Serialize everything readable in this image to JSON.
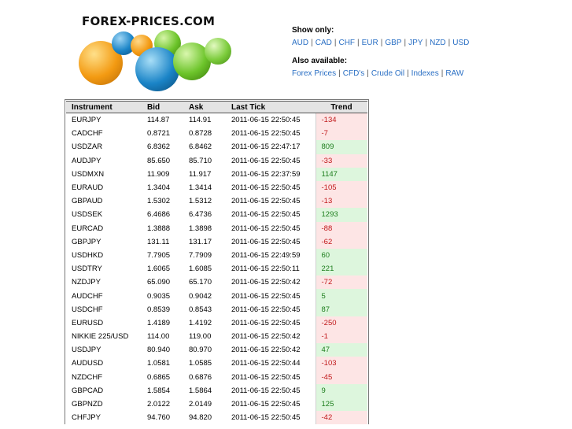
{
  "logo": {
    "text": "FOREX-PRICES.COM"
  },
  "filters": {
    "show_only_label": "Show only:",
    "currencies": [
      "AUD",
      "CAD",
      "CHF",
      "EUR",
      "GBP",
      "JPY",
      "NZD",
      "USD"
    ],
    "also_available_label": "Also available:",
    "also_links": [
      "Forex Prices",
      "CFD's",
      "Crude Oil",
      "Indexes",
      "RAW"
    ]
  },
  "table": {
    "headers": [
      "Instrument",
      "Bid",
      "Ask",
      "Last Tick",
      "Trend"
    ],
    "rows": [
      [
        "EURJPY",
        "114.87",
        "114.91",
        "2011-06-15 22:50:45",
        "-134"
      ],
      [
        "CADCHF",
        "0.8721",
        "0.8728",
        "2011-06-15 22:50:45",
        "-7"
      ],
      [
        "USDZAR",
        "6.8362",
        "6.8462",
        "2011-06-15 22:47:17",
        "809"
      ],
      [
        "AUDJPY",
        "85.650",
        "85.710",
        "2011-06-15 22:50:45",
        "-33"
      ],
      [
        "USDMXN",
        "11.909",
        "11.917",
        "2011-06-15 22:37:59",
        "1147"
      ],
      [
        "EURAUD",
        "1.3404",
        "1.3414",
        "2011-06-15 22:50:45",
        "-105"
      ],
      [
        "GBPAUD",
        "1.5302",
        "1.5312",
        "2011-06-15 22:50:45",
        "-13"
      ],
      [
        "USDSEK",
        "6.4686",
        "6.4736",
        "2011-06-15 22:50:45",
        "1293"
      ],
      [
        "EURCAD",
        "1.3888",
        "1.3898",
        "2011-06-15 22:50:45",
        "-88"
      ],
      [
        "GBPJPY",
        "131.11",
        "131.17",
        "2011-06-15 22:50:45",
        "-62"
      ],
      [
        "USDHKD",
        "7.7905",
        "7.7909",
        "2011-06-15 22:49:59",
        "60"
      ],
      [
        "USDTRY",
        "1.6065",
        "1.6085",
        "2011-06-15 22:50:11",
        "221"
      ],
      [
        "NZDJPY",
        "65.090",
        "65.170",
        "2011-06-15 22:50:42",
        "-72"
      ],
      [
        "AUDCHF",
        "0.9035",
        "0.9042",
        "2011-06-15 22:50:45",
        "5"
      ],
      [
        "USDCHF",
        "0.8539",
        "0.8543",
        "2011-06-15 22:50:45",
        "87"
      ],
      [
        "EURUSD",
        "1.4189",
        "1.4192",
        "2011-06-15 22:50:45",
        "-250"
      ],
      [
        "NIKKIE 225/USD",
        "114.00",
        "119.00",
        "2011-06-15 22:50:42",
        "-1"
      ],
      [
        "USDJPY",
        "80.940",
        "80.970",
        "2011-06-15 22:50:42",
        "47"
      ],
      [
        "AUDUSD",
        "1.0581",
        "1.0585",
        "2011-06-15 22:50:44",
        "-103"
      ],
      [
        "NZDCHF",
        "0.6865",
        "0.6876",
        "2011-06-15 22:50:45",
        "-45"
      ],
      [
        "GBPCAD",
        "1.5854",
        "1.5864",
        "2011-06-15 22:50:45",
        "9"
      ],
      [
        "GBPNZD",
        "2.0122",
        "2.0149",
        "2011-06-15 22:50:45",
        "125"
      ],
      [
        "CHFJPY",
        "94.760",
        "94.820",
        "2011-06-15 22:50:45",
        "-42"
      ]
    ]
  },
  "colors": {
    "link": "#2a6fc4",
    "trend_up_bg": "#ddf6dd",
    "trend_up_text": "#1c7d1c",
    "trend_down_bg": "#fde5e5",
    "trend_down_text": "#c0181a",
    "ball_orange": "#f39a12",
    "ball_blue": "#1a84c7",
    "ball_green": "#6cc42a"
  }
}
